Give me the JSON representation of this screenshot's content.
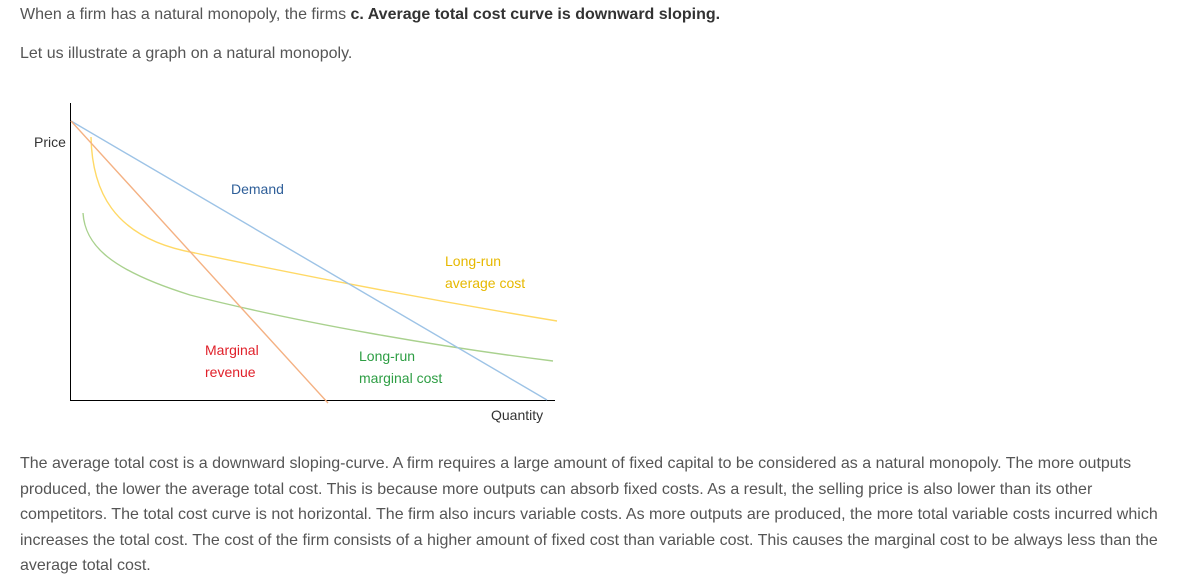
{
  "intro": {
    "answer_prefix": "When a firm has a natural monopoly, the firms ",
    "answer_bold": "c. Average total cost curve is downward sloping.",
    "illustrate": "Let us illustrate a graph on a natural monopoly."
  },
  "chart_data": {
    "type": "line",
    "ylabel": "Price",
    "xlabel": "Quantity",
    "curve_labels": [
      {
        "id": "demand",
        "lines": [
          "Demand"
        ],
        "color": "#2f5f99"
      },
      {
        "id": "lrac",
        "lines": [
          "Long-run",
          "average cost"
        ],
        "color": "#e6b800"
      },
      {
        "id": "mr",
        "lines": [
          "Marginal",
          "revenue"
        ],
        "color": "#e0202a"
      },
      {
        "id": "lrmc",
        "lines": [
          "Long-run",
          "marginal cost"
        ],
        "color": "#2e9e44"
      }
    ],
    "series": [
      {
        "id": "demand",
        "shape": "linear-down",
        "color": "#9dc3e6"
      },
      {
        "id": "mr",
        "shape": "linear-down-steep",
        "color": "#f4b183"
      },
      {
        "id": "lrac",
        "shape": "convex-decreasing",
        "color": "#ffd966"
      },
      {
        "id": "lrmc",
        "shape": "convex-decreasing",
        "color": "#a9d18e"
      }
    ],
    "grid": false,
    "legend": "none"
  },
  "explanation": "The average total cost is a downward sloping-curve. A firm requires a large amount of fixed capital to be considered as a natural monopoly. The more outputs produced, the lower the average total cost. This is because more outputs can absorb fixed costs. As a result, the selling price is also lower than its other competitors. The total cost curve is not horizontal. The firm also incurs variable costs. As more outputs are produced, the more total variable costs incurred which increases the total cost. The cost of the firm consists of a higher amount of fixed cost than variable cost. This causes the marginal cost to be always less than the average total cost."
}
